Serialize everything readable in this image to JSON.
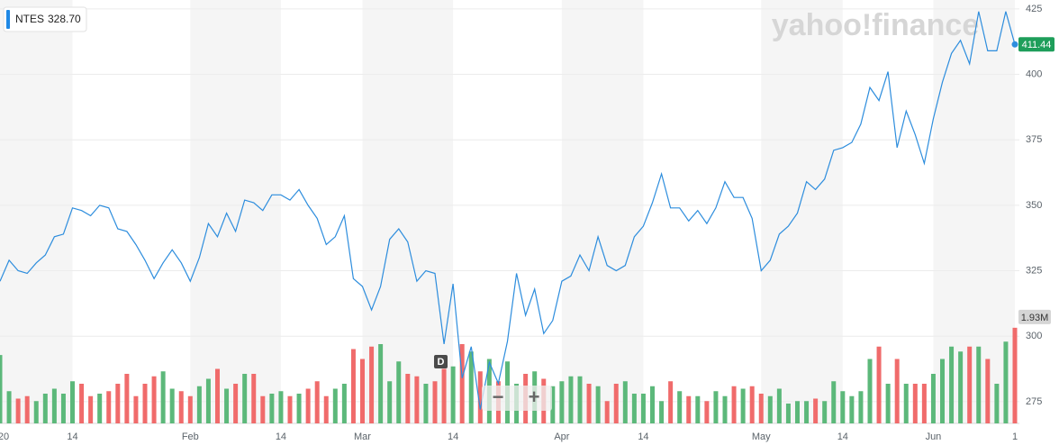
{
  "chart_data": {
    "type": "line",
    "watermark": "yahoo!finance",
    "readout": {
      "symbol": "NTES",
      "price": "328.70"
    },
    "event_marker": "D",
    "controls": [
      "−",
      "+"
    ],
    "categories": [
      "20",
      null,
      null,
      null,
      null,
      null,
      null,
      null,
      "14",
      null,
      null,
      null,
      null,
      null,
      null,
      null,
      null,
      null,
      null,
      null,
      null,
      "Feb",
      null,
      null,
      null,
      null,
      null,
      null,
      null,
      null,
      null,
      "14",
      null,
      null,
      null,
      null,
      null,
      null,
      null,
      null,
      "Mar",
      null,
      null,
      null,
      null,
      null,
      null,
      null,
      null,
      null,
      "14",
      null,
      null,
      null,
      null,
      null,
      null,
      null,
      null,
      null,
      null,
      null,
      "Apr",
      null,
      null,
      null,
      null,
      null,
      null,
      null,
      null,
      "14",
      null,
      null,
      null,
      null,
      null,
      null,
      null,
      null,
      null,
      null,
      null,
      null,
      "May",
      null,
      null,
      null,
      null,
      null,
      null,
      null,
      null,
      "14",
      null,
      null,
      null,
      null,
      null,
      null,
      null,
      null,
      null,
      "Jun",
      null,
      null,
      null,
      null,
      null,
      null,
      null,
      null,
      "1"
    ],
    "series": [
      {
        "name": "NTES",
        "color": "#2d8ddd",
        "values": [
          321,
          329,
          325,
          324,
          328,
          331,
          338,
          339,
          349,
          348,
          346,
          350,
          349,
          341,
          340,
          335,
          329,
          322,
          328,
          333,
          328,
          321,
          330,
          343,
          338,
          347,
          340,
          352,
          351,
          348,
          354,
          354,
          352,
          356,
          350,
          345,
          335,
          338,
          346,
          322,
          319,
          310,
          319,
          337,
          341,
          336,
          321,
          325,
          324,
          297,
          320,
          284,
          296,
          272,
          290,
          282,
          298,
          324,
          308,
          318,
          301,
          306,
          321,
          323,
          331,
          325,
          338,
          327,
          325,
          327,
          338,
          342,
          351,
          362,
          349,
          349,
          344,
          348,
          343,
          349,
          359,
          353,
          353,
          345,
          325,
          329,
          339,
          342,
          347,
          359,
          356,
          360,
          371,
          372,
          374,
          381,
          395,
          390,
          401,
          372,
          386,
          377,
          366,
          383,
          397,
          408,
          413,
          404,
          424,
          409,
          409,
          424,
          411.44
        ]
      },
      {
        "name": "Volume",
        "axis": "y2",
        "up_color": "#5cb87a",
        "down_color": "#f06b6b",
        "values": [
          1.38,
          0.65,
          0.5,
          0.55,
          0.45,
          0.6,
          0.7,
          0.6,
          0.85,
          0.8,
          0.55,
          0.6,
          0.65,
          0.8,
          1.0,
          0.55,
          0.8,
          0.95,
          1.05,
          0.7,
          0.65,
          0.55,
          0.75,
          0.9,
          1.1,
          0.7,
          0.8,
          1.0,
          1.0,
          0.55,
          0.6,
          0.65,
          0.55,
          0.6,
          0.7,
          0.85,
          0.55,
          0.7,
          0.8,
          1.5,
          1.3,
          1.55,
          1.6,
          0.85,
          1.25,
          1.0,
          0.95,
          0.8,
          0.85,
          1.1,
          1.15,
          1.6,
          1.45,
          1.05,
          1.3,
          0.85,
          1.25,
          0.8,
          1.0,
          1.05,
          0.9,
          0.75,
          0.85,
          0.95,
          0.95,
          0.8,
          0.75,
          0.45,
          0.8,
          0.85,
          0.6,
          0.6,
          0.75,
          0.45,
          0.85,
          0.65,
          0.55,
          0.55,
          0.45,
          0.65,
          0.55,
          0.75,
          0.7,
          0.75,
          0.6,
          0.55,
          0.7,
          0.4,
          0.45,
          0.45,
          0.5,
          0.45,
          0.85,
          0.65,
          0.55,
          0.65,
          1.3,
          1.55,
          0.8,
          1.3,
          0.8,
          0.8,
          0.8,
          1.0,
          1.3,
          1.55,
          1.45,
          1.55,
          1.55,
          1.3,
          0.8,
          1.65,
          1.93
        ],
        "value_labels": [
          null,
          null,
          null,
          null,
          null,
          null,
          null,
          null,
          null,
          null,
          null,
          null,
          null,
          null,
          null,
          null,
          null,
          null,
          null,
          null,
          null,
          null,
          null,
          null,
          null,
          null,
          null,
          null,
          null,
          null,
          null,
          null,
          null,
          null,
          null,
          null,
          null,
          null,
          null,
          null,
          null,
          null,
          null,
          null,
          null,
          null,
          null,
          null,
          null,
          null,
          null,
          null,
          null,
          null,
          null,
          null,
          null,
          null,
          null,
          null,
          null,
          null,
          null,
          null,
          null,
          null,
          null,
          null,
          null,
          null,
          null,
          null,
          null,
          null,
          null,
          null,
          null,
          null,
          null,
          null,
          null,
          null,
          null,
          null,
          null,
          null,
          null,
          null,
          null,
          null,
          null,
          null,
          null,
          null,
          null,
          null,
          null,
          null,
          null,
          null,
          null,
          null,
          null,
          null,
          null,
          null,
          null,
          null,
          null,
          null,
          null,
          null,
          "1.93M"
        ]
      }
    ],
    "ylim": [
      266.7,
      428.4
    ],
    "yticks": [
      275,
      300,
      325,
      350,
      375,
      400,
      425
    ],
    "y2lim": [
      0,
      2
    ],
    "grid": true
  }
}
